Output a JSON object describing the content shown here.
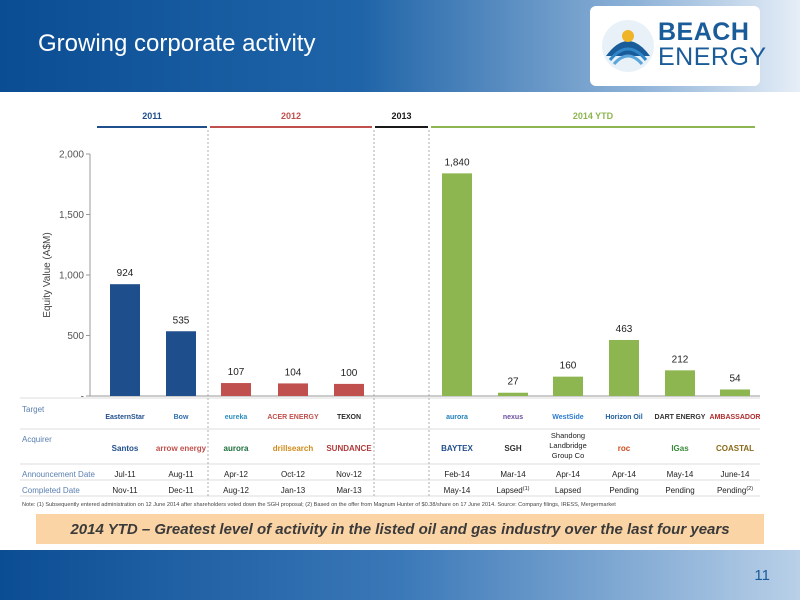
{
  "slide": {
    "title": "Growing corporate activity",
    "page_number": "11",
    "callout": "2014 YTD – Greatest level of activity in the listed oil and gas industry over the last four years",
    "note": "Note: (1) Subsequently entered administration on 12 June 2014 after shareholders voted down the SGH proposal; (2) Based on the offer from Magnum Hunter of $0.38/share on 17 June 2014. Source: Company filings, IRESS, Mergermarket"
  },
  "logo": {
    "line1": "BEACH",
    "line2": "ENERGY"
  },
  "colors": {
    "bar_2011": "#1f4e8c",
    "bar_2012": "#c0504d",
    "bar_2014": "#8db550",
    "line_2013": "#1a1a1a",
    "header": "#0b4d93",
    "callout": "#fbd4a6"
  },
  "row_labels": {
    "target": "Target",
    "acquirer": "Acquirer",
    "announcement": "Announcement Date",
    "completed": "Completed Date"
  },
  "chart_data": {
    "type": "bar",
    "ylabel": "Equity Value (A$M)",
    "ylim": [
      0,
      2000
    ],
    "yticks": [
      0,
      500,
      1000,
      1500,
      2000
    ],
    "ytick_labels": [
      "-",
      "500",
      "1,000",
      "1,500",
      "2,000"
    ],
    "grid": false,
    "periods": [
      {
        "label": "2011",
        "color": "#1f4e8c"
      },
      {
        "label": "2012",
        "color": "#c0504d"
      },
      {
        "label": "2013",
        "color": "#1a1a1a"
      },
      {
        "label": "2014 YTD",
        "color": "#8db550"
      }
    ],
    "deals": [
      {
        "period": "2011",
        "value": 924,
        "label": "924",
        "target": "EasternStar",
        "acquirer": "Santos",
        "announced": "Jul-11",
        "completed": "Nov-11",
        "completed_note": ""
      },
      {
        "period": "2011",
        "value": 535,
        "label": "535",
        "target": "Bow",
        "acquirer": "arrow energy",
        "announced": "Aug-11",
        "completed": "Dec-11",
        "completed_note": ""
      },
      {
        "period": "2012",
        "value": 107,
        "label": "107",
        "target": "eureka",
        "acquirer": "aurora",
        "announced": "Apr-12",
        "completed": "Aug-12",
        "completed_note": ""
      },
      {
        "period": "2012",
        "value": 104,
        "label": "104",
        "target": "ACER ENERGY",
        "acquirer": "drillsearch",
        "announced": "Oct-12",
        "completed": "Jan-13",
        "completed_note": ""
      },
      {
        "period": "2012",
        "value": 100,
        "label": "100",
        "target": "TEXON",
        "acquirer": "SUNDANCE",
        "announced": "Nov-12",
        "completed": "Mar-13",
        "completed_note": ""
      },
      {
        "period": "2014 YTD",
        "value": 1840,
        "label": "1,840",
        "target": "aurora",
        "acquirer": "BAYTEX",
        "announced": "Feb-14",
        "completed": "May-14",
        "completed_note": ""
      },
      {
        "period": "2014 YTD",
        "value": 27,
        "label": "27",
        "target": "nexus",
        "acquirer": "SGH",
        "announced": "Mar-14",
        "completed": "Lapsed",
        "completed_note": "(1)"
      },
      {
        "period": "2014 YTD",
        "value": 160,
        "label": "160",
        "target": "WestSide",
        "acquirer": "Shandong Landbridge Group Co",
        "announced": "Apr-14",
        "completed": "Lapsed",
        "completed_note": ""
      },
      {
        "period": "2014 YTD",
        "value": 463,
        "label": "463",
        "target": "Horizon Oil",
        "acquirer": "roc",
        "announced": "Apr-14",
        "completed": "Pending",
        "completed_note": ""
      },
      {
        "period": "2014 YTD",
        "value": 212,
        "label": "212",
        "target": "DART ENERGY",
        "acquirer": "IGas",
        "announced": "May-14",
        "completed": "Pending",
        "completed_note": ""
      },
      {
        "period": "2014 YTD",
        "value": 54,
        "label": "54",
        "target": "AMBASSADOR",
        "acquirer": "COASTAL",
        "announced": "June-14",
        "completed": "Pending",
        "completed_note": "(2)"
      }
    ]
  }
}
